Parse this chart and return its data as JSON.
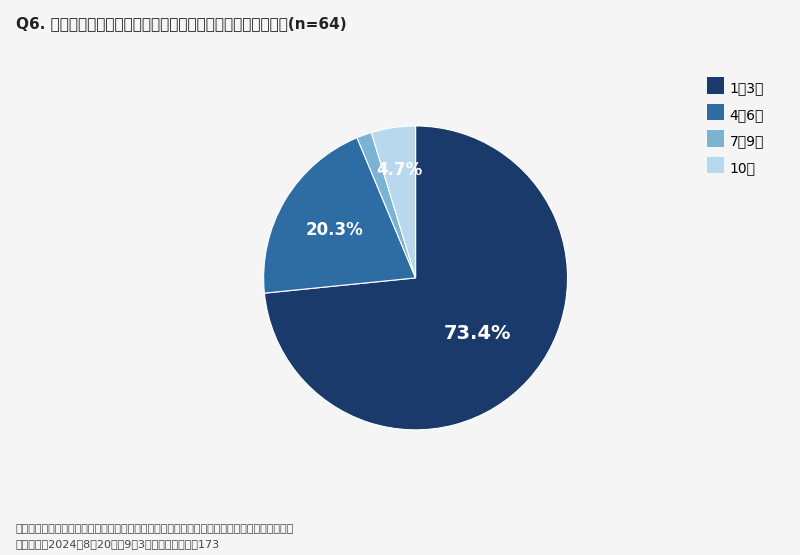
{
  "title": "Q6. 販売価格に転嫁できたのは、人件費上昇分の何割ですか？(n=64)",
  "labels": [
    "1～3割",
    "4～6割",
    "7～9割",
    "10割"
  ],
  "values": [
    73.4,
    20.3,
    1.6,
    4.7
  ],
  "colors": [
    "#1a3a6b",
    "#2e6da4",
    "#7ab3d4",
    "#b8d9ed"
  ],
  "pct_labels": [
    "73.4%",
    "20.3%",
    "",
    "4.7%"
  ],
  "startangle": 90,
  "footnote1": "当社にて採用係長ユーザーを対象に「最低賃金の引き上げ」に関するアンケート調査を実施。",
  "footnote2": "調査期間は2024年8月20日～9月3日。有効回答数は173",
  "background_color": "#f5f5f5"
}
